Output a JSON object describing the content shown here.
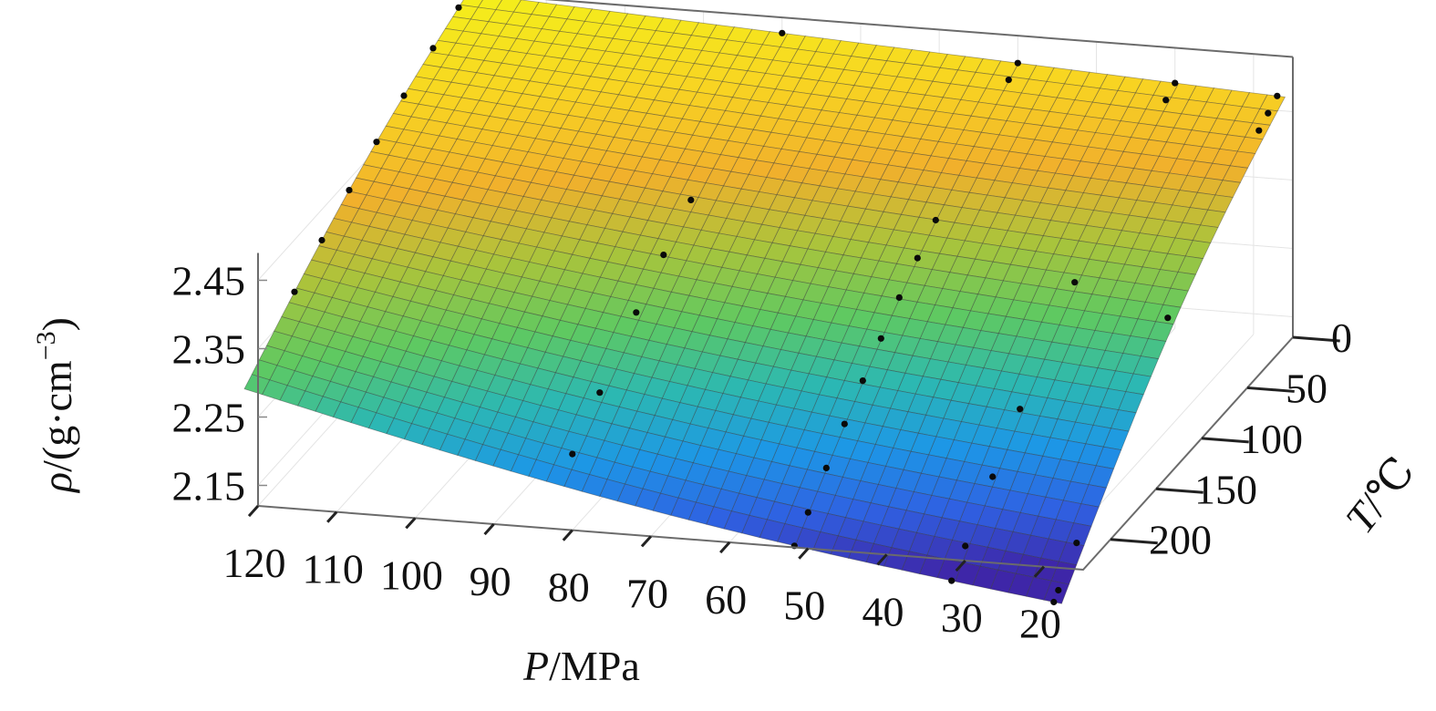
{
  "chart_data": {
    "type": "surface",
    "xlabel": {
      "symbol": "P",
      "unit": "/MPa"
    },
    "ylabel": {
      "symbol": "T",
      "unit": "/℃"
    },
    "zlabel": {
      "symbol": "ρ",
      "unit_pre": "/(g·cm",
      "unit_sup": "−3",
      "unit_post": ")"
    },
    "x_ticks": [
      "120",
      "110",
      "100",
      "90",
      "80",
      "70",
      "60",
      "50",
      "40",
      "30",
      "20"
    ],
    "y_ticks": [
      "0",
      "50",
      "100",
      "150",
      "200"
    ],
    "z_ticks": [
      "2.45",
      "2.35",
      "2.25",
      "2.15"
    ],
    "xlim": [
      15,
      120
    ],
    "ylim": [
      0,
      230
    ],
    "zlim": [
      2.12,
      2.53
    ],
    "grid": true,
    "colormap": [
      "#3e26a8",
      "#2f61e2",
      "#1d97e6",
      "#2cb8b2",
      "#5ec962",
      "#a8c43c",
      "#f1b02c",
      "#f8d422",
      "#f4ef1b"
    ],
    "surface_corners": {
      "P120_T0": 2.53,
      "P15_T0": 2.47,
      "P120_T230": 2.33,
      "P15_T230": 2.12
    },
    "points": [
      {
        "x": 120,
        "y": 10,
        "z": 2.5
      },
      {
        "x": 120,
        "y": 38,
        "z": 2.49
      },
      {
        "x": 120,
        "y": 70,
        "z": 2.48
      },
      {
        "x": 120,
        "y": 100,
        "z": 2.47
      },
      {
        "x": 120,
        "y": 130,
        "z": 2.46
      },
      {
        "x": 120,
        "y": 160,
        "z": 2.44
      },
      {
        "x": 120,
        "y": 190,
        "z": 2.42
      },
      {
        "x": 80,
        "y": 0,
        "z": 2.51
      },
      {
        "x": 80,
        "y": 100,
        "z": 2.45
      },
      {
        "x": 80,
        "y": 130,
        "z": 2.43
      },
      {
        "x": 80,
        "y": 160,
        "z": 2.42
      },
      {
        "x": 80,
        "y": 200,
        "z": 2.4
      },
      {
        "x": 80,
        "y": 230,
        "z": 2.39
      },
      {
        "x": 50,
        "y": 0,
        "z": 2.505
      },
      {
        "x": 50,
        "y": 10,
        "z": 2.5
      },
      {
        "x": 50,
        "y": 90,
        "z": 2.44
      },
      {
        "x": 50,
        "y": 110,
        "z": 2.43
      },
      {
        "x": 50,
        "y": 130,
        "z": 2.42
      },
      {
        "x": 50,
        "y": 150,
        "z": 2.4
      },
      {
        "x": 50,
        "y": 170,
        "z": 2.38
      },
      {
        "x": 50,
        "y": 190,
        "z": 2.36
      },
      {
        "x": 50,
        "y": 210,
        "z": 2.33
      },
      {
        "x": 50,
        "y": 230,
        "z": 2.3
      },
      {
        "x": 50,
        "y": 250,
        "z": 2.27
      },
      {
        "x": 30,
        "y": 0,
        "z": 2.5
      },
      {
        "x": 30,
        "y": 10,
        "z": 2.49
      },
      {
        "x": 30,
        "y": 110,
        "z": 2.43
      },
      {
        "x": 30,
        "y": 170,
        "z": 2.35
      },
      {
        "x": 30,
        "y": 200,
        "z": 2.3
      },
      {
        "x": 30,
        "y": 230,
        "z": 2.26
      },
      {
        "x": 30,
        "y": 260,
        "z": 2.22
      },
      {
        "x": 17,
        "y": 0,
        "z": 2.485
      },
      {
        "x": 17,
        "y": 10,
        "z": 2.475
      },
      {
        "x": 17,
        "y": 20,
        "z": 2.465
      },
      {
        "x": 17,
        "y": 120,
        "z": 2.4
      },
      {
        "x": 17,
        "y": 220,
        "z": 2.25
      },
      {
        "x": 17,
        "y": 240,
        "z": 2.2
      },
      {
        "x": 17,
        "y": 260,
        "z": 2.15
      }
    ]
  }
}
